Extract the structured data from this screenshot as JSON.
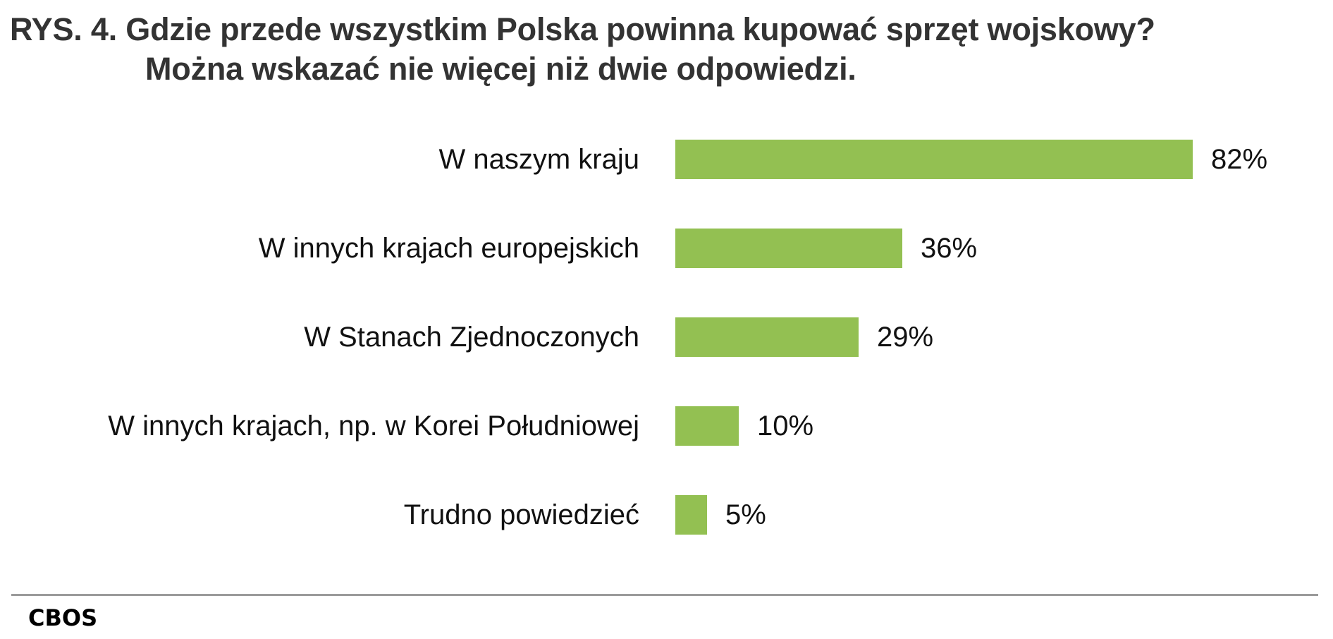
{
  "title": {
    "line1": "RYS. 4. Gdzie przede wszystkim Polska powinna kupować sprzęt wojskowy?",
    "line2": "Można wskazać nie więcej niż dwie odpowiedzi."
  },
  "source": "CBOS",
  "colors": {
    "bar": "#93c052",
    "title": "#333333",
    "divider": "#9a9a9a"
  },
  "chart_data": {
    "type": "bar",
    "orientation": "horizontal",
    "title": "RYS. 4. Gdzie przede wszystkim Polska powinna kupować sprzęt wojskowy? Można wskazać nie więcej niż dwie odpowiedzi.",
    "categories": [
      "W naszym kraju",
      "W innych krajach europejskich",
      "W Stanach Zjednoczonych",
      "W innych krajach, np. w Korei Południowej",
      "Trudno powiedzieć"
    ],
    "values": [
      82,
      36,
      29,
      10,
      5
    ],
    "value_labels": [
      "82%",
      "36%",
      "29%",
      "10%",
      "5%"
    ],
    "xlabel": "",
    "ylabel": "",
    "unit": "%",
    "xlim": [
      0,
      100
    ],
    "grid": false,
    "legend": null,
    "source": "CBOS"
  }
}
